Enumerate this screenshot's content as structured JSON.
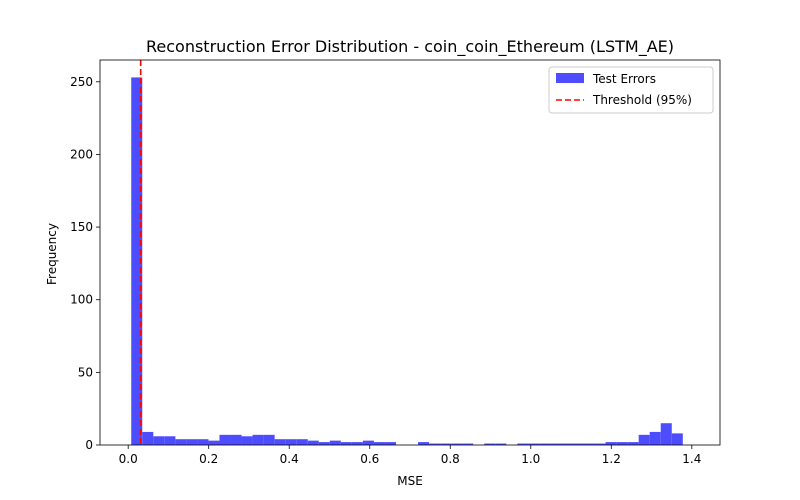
{
  "chart_data": {
    "type": "bar",
    "title": "Reconstruction Error Distribution - coin_coin_Ethereum (LSTM_AE)",
    "xlabel": "MSE",
    "ylabel": "Frequency",
    "xlim": [
      -0.07,
      1.47
    ],
    "ylim": [
      0,
      265
    ],
    "xticks": [
      0.0,
      0.2,
      0.4,
      0.6,
      0.8,
      1.0,
      1.2,
      1.4
    ],
    "xtick_labels": [
      "0.0",
      "0.2",
      "0.4",
      "0.6",
      "0.8",
      "1.0",
      "1.2",
      "1.4"
    ],
    "yticks": [
      0,
      50,
      100,
      150,
      200,
      250
    ],
    "ytick_labels": [
      "0",
      "50",
      "100",
      "150",
      "200",
      "250"
    ],
    "bin_start": 0.0076,
    "bin_width": 0.0274,
    "counts": [
      253,
      9,
      6,
      6,
      4,
      4,
      4,
      3,
      7,
      7,
      6,
      7,
      7,
      4,
      4,
      4,
      3,
      2,
      3,
      2,
      2,
      3,
      2,
      2,
      0,
      0,
      2,
      1,
      1,
      1,
      1,
      0,
      1,
      1,
      0,
      1,
      1,
      1,
      1,
      1,
      1,
      1,
      1,
      2,
      2,
      2,
      7,
      9,
      15,
      8
    ],
    "series": [
      {
        "name": "Test Errors",
        "color": "#4d4dff",
        "kind": "histogram"
      },
      {
        "name": "Threshold (95%)",
        "color": "#ff0000",
        "kind": "vline",
        "x": 0.031
      }
    ],
    "grid": false,
    "legend_position": "top-right"
  }
}
